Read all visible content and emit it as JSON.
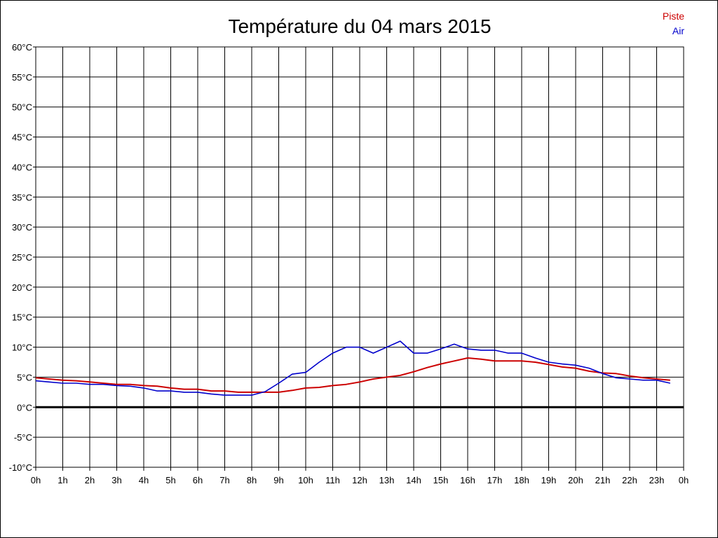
{
  "chart_data": {
    "type": "line",
    "title": "Température du 04 mars 2015",
    "xlabel": "",
    "ylabel": "",
    "ylim": [
      -10,
      60
    ],
    "y_ticks": [
      "60°C",
      "55°C",
      "50°C",
      "45°C",
      "40°C",
      "35°C",
      "30°C",
      "25°C",
      "20°C",
      "15°C",
      "10°C",
      "5°C",
      "0°C",
      "-5°C",
      "-10°C"
    ],
    "y_tick_values": [
      60,
      55,
      50,
      45,
      40,
      35,
      30,
      25,
      20,
      15,
      10,
      5,
      0,
      -5,
      -10
    ],
    "x_ticks": [
      "0h",
      "1h",
      "2h",
      "3h",
      "4h",
      "5h",
      "6h",
      "7h",
      "8h",
      "9h",
      "10h",
      "11h",
      "12h",
      "13h",
      "14h",
      "15h",
      "16h",
      "17h",
      "18h",
      "19h",
      "20h",
      "21h",
      "22h",
      "23h",
      "0h"
    ],
    "xlim": [
      0,
      24
    ],
    "grid": true,
    "zero_line": true,
    "legend_position": "top-right",
    "series": [
      {
        "name": "Piste",
        "color": "#cc0000",
        "x": [
          0,
          0.5,
          1,
          1.5,
          2,
          2.5,
          3,
          3.5,
          4,
          4.5,
          5,
          5.5,
          6,
          6.5,
          7,
          7.5,
          8,
          8.5,
          9,
          9.5,
          10,
          10.5,
          11,
          11.5,
          12,
          12.5,
          13,
          13.5,
          14,
          14.5,
          15,
          15.5,
          16,
          16.5,
          17,
          17.5,
          18,
          18.5,
          19,
          19.5,
          20,
          20.5,
          21,
          21.5,
          22,
          22.5,
          23,
          23.5
        ],
        "values": [
          4.9,
          4.7,
          4.5,
          4.4,
          4.2,
          4.0,
          3.8,
          3.8,
          3.6,
          3.5,
          3.2,
          3.0,
          3.0,
          2.7,
          2.7,
          2.5,
          2.5,
          2.5,
          2.5,
          2.8,
          3.2,
          3.3,
          3.6,
          3.8,
          4.2,
          4.7,
          5.0,
          5.3,
          5.9,
          6.6,
          7.2,
          7.7,
          8.2,
          8.0,
          7.7,
          7.7,
          7.7,
          7.5,
          7.1,
          6.7,
          6.5,
          6.0,
          5.7,
          5.6,
          5.2,
          4.9,
          4.7,
          4.5
        ]
      },
      {
        "name": "Air",
        "color": "#0000cc",
        "x": [
          0,
          0.5,
          1,
          1.5,
          2,
          2.5,
          3,
          3.5,
          4,
          4.5,
          5,
          5.5,
          6,
          6.5,
          7,
          7.5,
          8,
          8.5,
          9,
          9.5,
          10,
          10.5,
          11,
          11.5,
          12,
          12.5,
          13,
          13.5,
          14,
          14.5,
          15,
          15.5,
          16,
          16.5,
          17,
          17.5,
          18,
          18.5,
          19,
          19.5,
          20,
          20.5,
          21,
          21.5,
          22,
          22.5,
          23,
          23.5
        ],
        "values": [
          4.4,
          4.2,
          4.0,
          4.0,
          3.8,
          3.8,
          3.6,
          3.5,
          3.2,
          2.7,
          2.7,
          2.5,
          2.5,
          2.2,
          2.0,
          2.0,
          2.0,
          2.6,
          4.0,
          5.5,
          5.8,
          7.5,
          9.0,
          10.0,
          10.0,
          9.0,
          10.0,
          11.0,
          9.0,
          9.0,
          9.7,
          10.5,
          9.7,
          9.5,
          9.5,
          9.0,
          9.0,
          8.2,
          7.5,
          7.2,
          7.0,
          6.5,
          5.6,
          4.9,
          4.7,
          4.5,
          4.5,
          4.0
        ]
      }
    ]
  }
}
